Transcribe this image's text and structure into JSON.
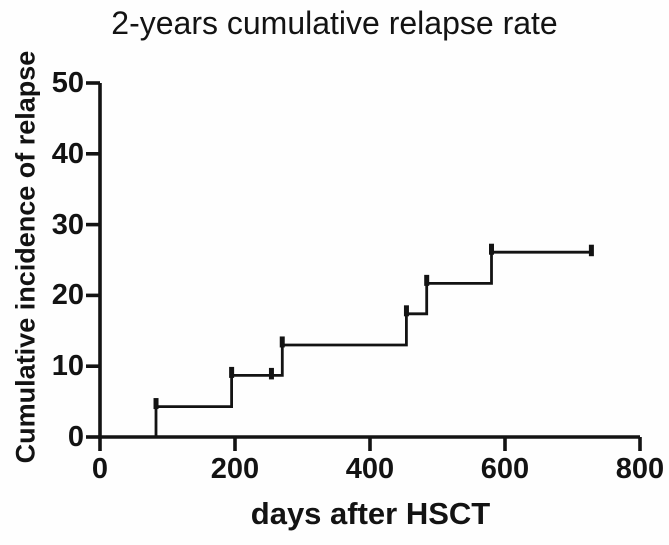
{
  "chart_data": {
    "type": "line",
    "subtype": "cumulative-incidence-step",
    "title": "2-years cumulative relapse rate",
    "xlabel": "days after HSCT",
    "ylabel": "Cumulative incidence of relapse",
    "xlim": [
      0,
      800
    ],
    "ylim": [
      0,
      50
    ],
    "xticks": [
      0,
      200,
      400,
      600,
      800
    ],
    "yticks": [
      0,
      10,
      20,
      30,
      40,
      50
    ],
    "grid": false,
    "legend": "none",
    "axis_color": "#131313",
    "background_color": "#fefefe",
    "series": [
      {
        "name": "Cumulative incidence of relapse (%)",
        "color": "#131313",
        "step_points": [
          [
            83,
            0
          ],
          [
            83,
            4.3
          ],
          [
            195,
            4.3
          ],
          [
            195,
            8.7
          ],
          [
            270,
            8.7
          ],
          [
            270,
            13.0
          ],
          [
            454,
            13.0
          ],
          [
            454,
            17.4
          ],
          [
            484,
            17.4
          ],
          [
            484,
            21.7
          ],
          [
            580,
            21.7
          ],
          [
            580,
            26.1
          ],
          [
            728,
            26.1
          ]
        ],
        "event_marks": [
          [
            83,
            4.3
          ],
          [
            195,
            8.7
          ],
          [
            270,
            13.0
          ],
          [
            454,
            17.4
          ],
          [
            484,
            21.7
          ],
          [
            580,
            26.1
          ]
        ],
        "censor_marks": [
          [
            254,
            8.7
          ],
          [
            728,
            26.1
          ]
        ],
        "final_value_pct": 26.1,
        "final_day": 728
      }
    ]
  }
}
